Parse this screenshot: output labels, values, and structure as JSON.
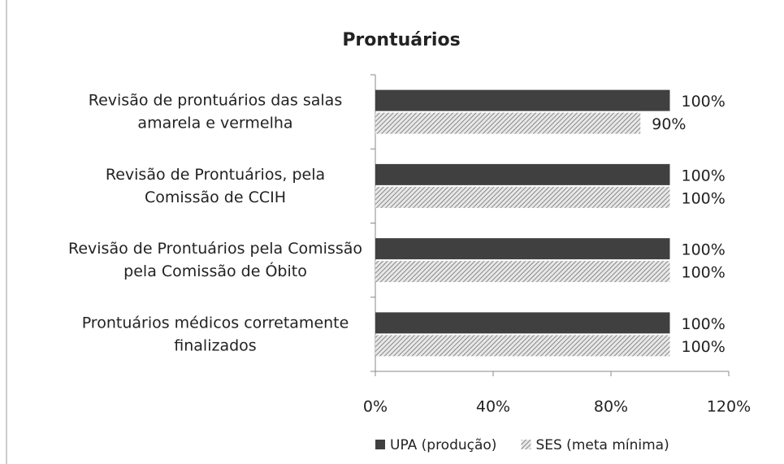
{
  "chart_data": {
    "type": "barh",
    "title": "Prontuários",
    "categories": [
      "Revisão de prontuários das salas\namarela e vermelha",
      "Revisão de Prontuários, pela\nComissão de CCIH",
      "Revisão de Prontuários pela Comissão\npela Comissão de Óbito",
      "Prontuários médicos corretamente\nfinalizados"
    ],
    "series": [
      {
        "name": "UPA (produção)",
        "color": "#404040",
        "values": [
          100,
          100,
          100,
          100
        ],
        "value_labels": [
          "100%",
          "100%",
          "100%",
          "100%"
        ]
      },
      {
        "name": "SES (meta mínima)",
        "color": "#a0a0a0",
        "pattern": "hatch",
        "values": [
          90,
          100,
          100,
          100
        ],
        "value_labels": [
          "90%",
          "100%",
          "100%",
          "100%"
        ]
      }
    ],
    "xlim": [
      0,
      120
    ],
    "xticks": [
      {
        "value": 0,
        "label": "0%"
      },
      {
        "value": 40,
        "label": "40%"
      },
      {
        "value": 80,
        "label": "80%"
      },
      {
        "value": 120,
        "label": "120%"
      }
    ],
    "legend": "bottom"
  }
}
